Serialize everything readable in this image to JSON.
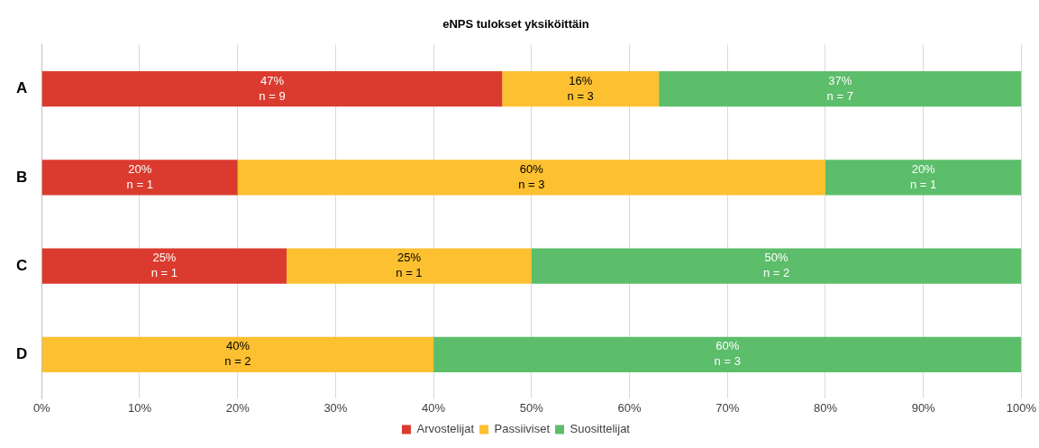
{
  "chart_data": {
    "type": "bar",
    "title": "eNPS tulokset yksiköittäin",
    "orientation": "horizontal",
    "stacked": true,
    "categories": [
      "A",
      "B",
      "C",
      "D"
    ],
    "series": [
      {
        "name": "Arvostelijat",
        "color": "#db3b2e",
        "values": [
          47,
          20,
          25,
          0
        ],
        "value_labels": [
          "47%\nn = 9",
          "20%\nn = 1",
          "25%\nn = 1",
          null
        ]
      },
      {
        "name": "Passiiviset",
        "color": "#fdc030",
        "values": [
          16,
          60,
          25,
          40
        ],
        "value_labels": [
          "16%\nn = 3",
          "60%\nn = 3",
          "25%\nn = 1",
          "40%\nn = 2"
        ]
      },
      {
        "name": "Suosittelijat",
        "color": "#5cbd6a",
        "values": [
          37,
          20,
          50,
          60
        ],
        "value_labels": [
          "37%\nn = 7",
          "20%\nn = 1",
          "50%\nn = 2",
          "60%\nn = 3"
        ]
      }
    ],
    "xlim": [
      0,
      100
    ],
    "xticks": [
      {
        "value": 0,
        "label": "0%"
      },
      {
        "value": 10,
        "label": "10%"
      },
      {
        "value": 20,
        "label": "20%"
      },
      {
        "value": 30,
        "label": "30%"
      },
      {
        "value": 40,
        "label": "40%"
      },
      {
        "value": 50,
        "label": "50%"
      },
      {
        "value": 60,
        "label": "60%"
      },
      {
        "value": 70,
        "label": "70%"
      },
      {
        "value": 80,
        "label": "80%"
      },
      {
        "value": 90,
        "label": "90%"
      },
      {
        "value": 100,
        "label": "100%"
      }
    ],
    "grid": "x",
    "legend": "bottom"
  }
}
